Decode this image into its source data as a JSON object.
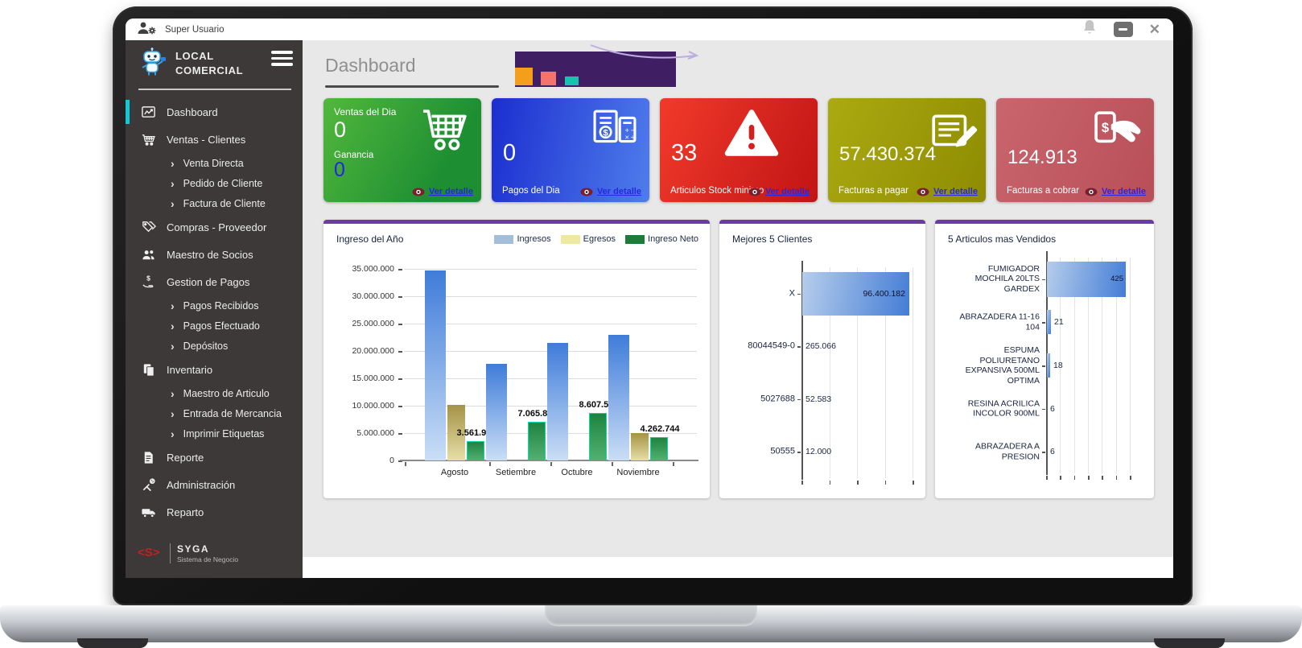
{
  "titlebar": {
    "user": "Super Usuario",
    "close_glyph": "✕"
  },
  "sidebar": {
    "brand_line1": "LOCAL",
    "brand_line2": "COMERCIAL",
    "chevron": "›",
    "items": [
      {
        "label": "Dashboard"
      },
      {
        "label": "Ventas - Clientes"
      },
      {
        "label": "Venta Directa"
      },
      {
        "label": "Pedido de Cliente"
      },
      {
        "label": "Factura de Cliente"
      },
      {
        "label": "Compras - Proveedor"
      },
      {
        "label": "Maestro de Socios"
      },
      {
        "label": "Gestion de Pagos"
      },
      {
        "label": "Pagos Recibidos"
      },
      {
        "label": "Pagos Efectuado"
      },
      {
        "label": "Depósitos"
      },
      {
        "label": "Inventario"
      },
      {
        "label": "Maestro de Articulo"
      },
      {
        "label": "Entrada de Mercancia"
      },
      {
        "label": "Imprimir Etiquetas"
      },
      {
        "label": "Reporte"
      },
      {
        "label": "Administración"
      },
      {
        "label": "Reparto"
      }
    ],
    "footer_brand": "SYGA",
    "footer_tagline": "Sistema de Negocio"
  },
  "header": {
    "title": "Dashboard",
    "deco_squares": [
      "#3f1e63",
      "#f49f1c",
      "#f4736a",
      "#17c3ae"
    ]
  },
  "cards": [
    {
      "title": "Ventas del Dia",
      "value": "0",
      "sub_label": "Ganancia",
      "sub_value": "0",
      "link": "Ver detalle"
    },
    {
      "value": "0",
      "label": "Pagos del Dia",
      "link": "Ver detalle"
    },
    {
      "value": "33",
      "label": "Articulos Stock minimo",
      "link": "Ver detalle"
    },
    {
      "value": "57.430.374",
      "label": "Facturas a pagar",
      "link": "Ver detalle"
    },
    {
      "value": "124.913",
      "label": "Facturas a cobrar",
      "link": "Ver detalle"
    }
  ],
  "chart_data": [
    {
      "type": "bar",
      "title": "Ingreso del Año",
      "categories": [
        "Agosto",
        "Setiembre",
        "Octubre",
        "Noviembre"
      ],
      "series": [
        {
          "name": "Ingresos",
          "color": "#a5bed8",
          "values": [
            34750000,
            17700000,
            21500000,
            23000000
          ]
        },
        {
          "name": "Egresos",
          "color": "#ede8a2",
          "values": [
            10200000,
            0,
            0,
            5000000
          ]
        },
        {
          "name": "Ingreso Neto",
          "color": "#1d7c3a",
          "values": [
            3561995,
            7065873,
            8607540,
            4262744
          ]
        }
      ],
      "data_labels": [
        "3.561.995",
        "7.065.873",
        "8.607.540",
        "4.262.744"
      ],
      "ylim": [
        0,
        35000000
      ],
      "yticks": [
        "0",
        "5.000.000",
        "10.000.000",
        "15.000.000",
        "20.000.000",
        "25.000.000",
        "30.000.000",
        "35.000.000"
      ],
      "legend_position": "top-right",
      "grid": true
    },
    {
      "type": "bar-horizontal",
      "title": "Mejores 5 Clientes",
      "categories": [
        "X",
        "80044549-0",
        "5027688",
        "50555"
      ],
      "values": [
        96400182,
        265066,
        52583,
        12000
      ],
      "value_labels": [
        "96.400.182",
        "265.066",
        "52.583",
        "12.000"
      ],
      "xlim": [
        0,
        100000000
      ],
      "grid": true
    },
    {
      "type": "bar-horizontal",
      "title": "5 Articulos mas Vendidos",
      "categories": [
        "FUMIGADOR MOCHILA 20LTS GARDEX",
        "ABRAZADERA 11-16 104",
        "ESPUMA POLIURETANO EXPANSIVA 500ML OPTIMA",
        "RESINA ACRILICA INCOLOR 900ML",
        "ABRAZADERA A PRESION"
      ],
      "values": [
        425,
        21,
        18,
        6,
        6
      ],
      "value_labels": [
        "425",
        "21",
        "18",
        "6",
        "6"
      ],
      "xlim": [
        0,
        450
      ],
      "grid": true
    }
  ],
  "colors": {
    "panel_accent": "#6a3da6",
    "active_item": "#12c9d6",
    "link_blue": "#2727e0",
    "card_green": "#2e9a36",
    "card_blue": "#2f4fdc",
    "card_red": "#d92a20",
    "card_olive": "#9c9909",
    "card_crimson": "#c05a63",
    "sidebar_bg": "#3c3938"
  }
}
